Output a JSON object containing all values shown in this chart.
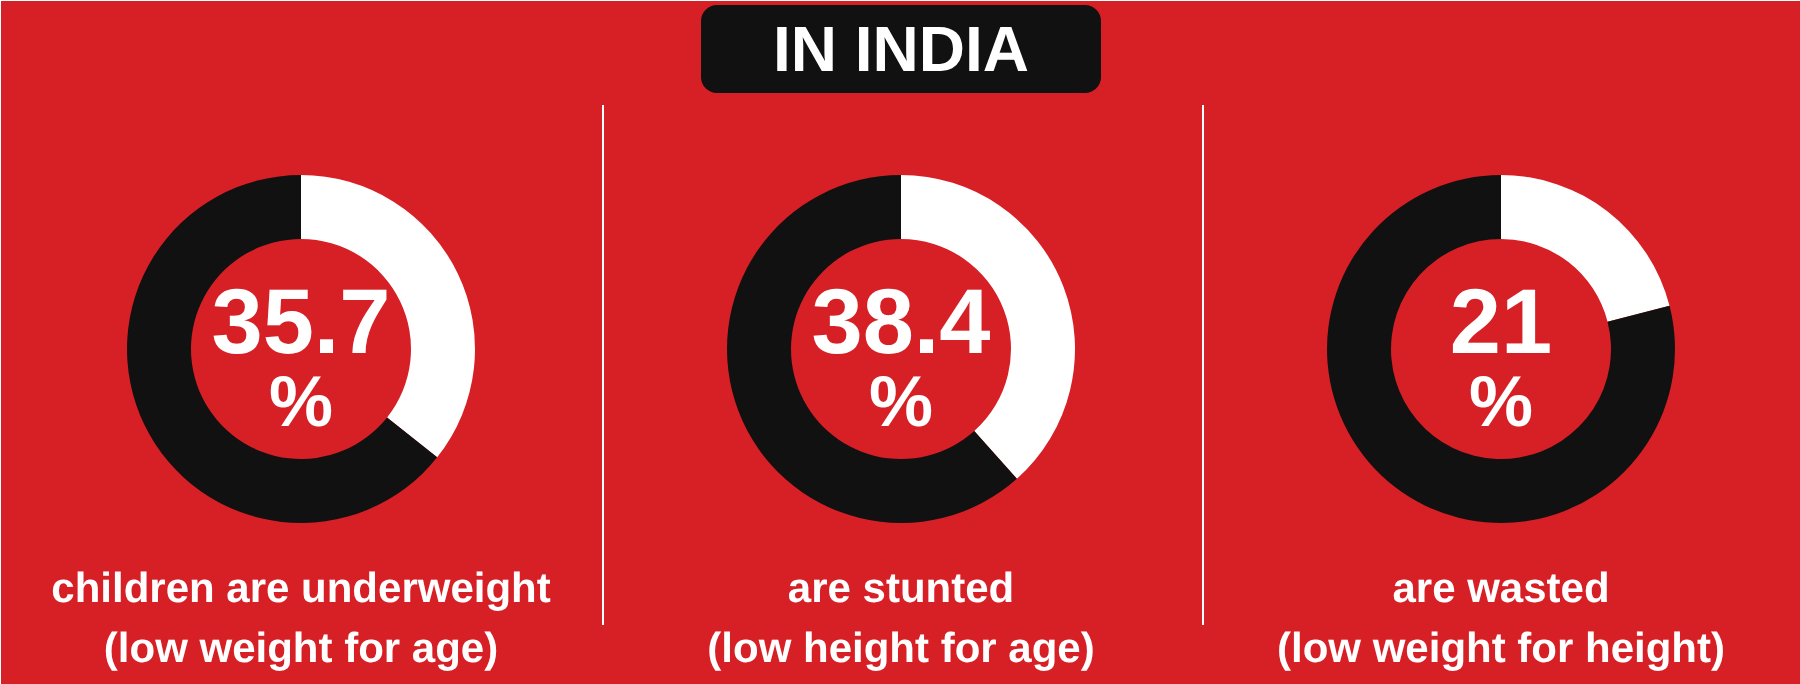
{
  "chart_data": [
    {
      "type": "donut",
      "categories": [
        null,
        null
      ],
      "values": [
        35.7,
        64.3
      ],
      "colors": [
        "#ffffff",
        "#111111"
      ],
      "annotations": [
        "35.7 %",
        "children are underweight",
        "(low weight for age)"
      ]
    },
    {
      "type": "donut",
      "title": "IN INDIA",
      "categories": [
        null,
        null
      ],
      "values": [
        38.4,
        61.6
      ],
      "colors": [
        "#ffffff",
        "#111111"
      ],
      "annotations": [
        "38.4 %",
        "are stunted",
        "(low height for age)"
      ]
    },
    {
      "type": "donut",
      "categories": [
        null,
        null
      ],
      "values": [
        21,
        79
      ],
      "colors": [
        "#ffffff",
        "#111111"
      ],
      "annotations": [
        "21 %",
        "are wasted",
        "(low weight for height)"
      ]
    }
  ]
}
